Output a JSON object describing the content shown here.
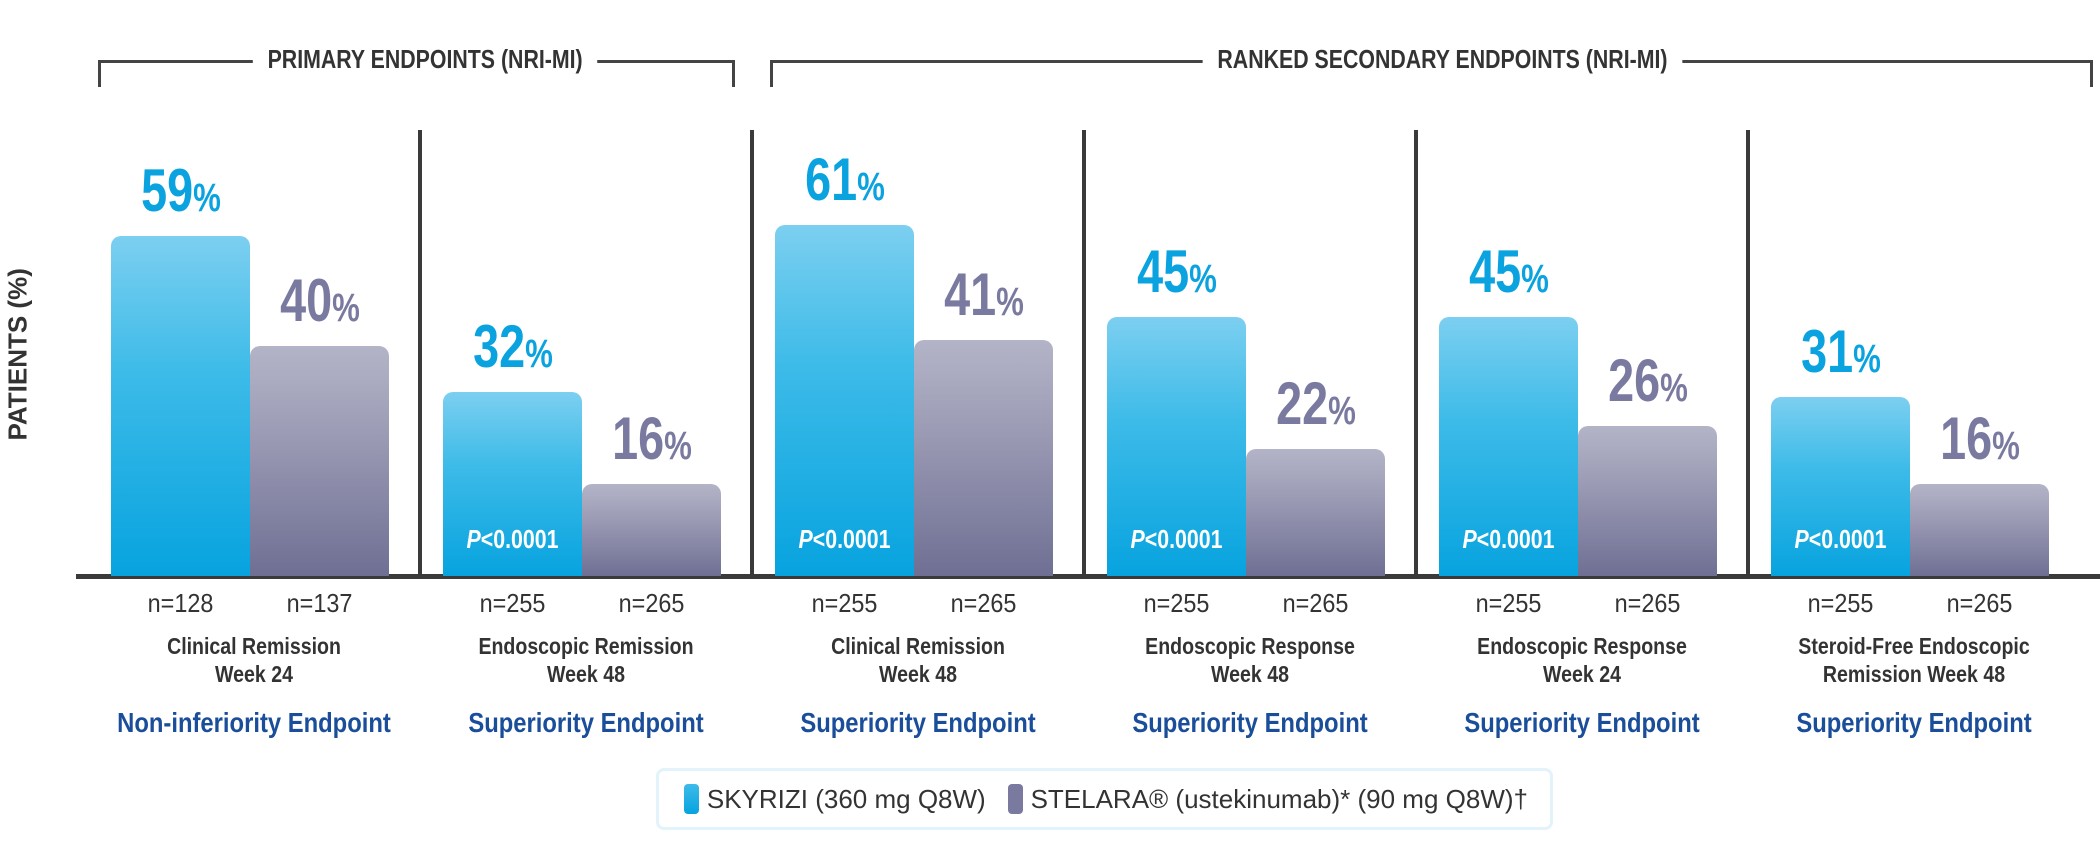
{
  "chart_data": {
    "type": "bar",
    "ylabel": "PATIENTS (%)",
    "ylim": [
      0,
      70
    ],
    "grid": false,
    "legend_placement": "bottom",
    "groups": [
      {
        "label": "PRIMARY ENDPOINTS (NRI-MI)",
        "categories": [
          0,
          1
        ]
      },
      {
        "label": "RANKED SECONDARY ENDPOINTS (NRI-MI)",
        "categories": [
          2,
          3,
          4,
          5
        ]
      }
    ],
    "categories": [
      {
        "line1": "Clinical Remission",
        "line2": "Week 24",
        "endpoint": "Non-inferiority Endpoint",
        "p_value": "",
        "n": [
          "n=128",
          "n=137"
        ]
      },
      {
        "line1": "Endoscopic Remission",
        "line2": "Week 48",
        "endpoint": "Superiority Endpoint",
        "p_value": "P<0.0001",
        "n": [
          "n=255",
          "n=265"
        ]
      },
      {
        "line1": "Clinical Remission",
        "line2": "Week 48",
        "endpoint": "Superiority Endpoint",
        "p_value": "P<0.0001",
        "n": [
          "n=255",
          "n=265"
        ]
      },
      {
        "line1": "Endoscopic Response",
        "line2": "Week 48",
        "endpoint": "Superiority Endpoint",
        "p_value": "P<0.0001",
        "n": [
          "n=255",
          "n=265"
        ]
      },
      {
        "line1": "Endoscopic Response",
        "line2": "Week 24",
        "endpoint": "Superiority Endpoint",
        "p_value": "P<0.0001",
        "n": [
          "n=255",
          "n=265"
        ]
      },
      {
        "line1": "Steroid-Free Endoscopic",
        "line2": "Remission Week 48",
        "endpoint": "Superiority Endpoint",
        "p_value": "P<0.0001",
        "n": [
          "n=255",
          "n=265"
        ]
      }
    ],
    "series": [
      {
        "name": "SKYRIZI (360 mg Q8W)",
        "color": "#0aa3df",
        "values": [
          59,
          32,
          61,
          45,
          45,
          31
        ]
      },
      {
        "name": "STELARA® (ustekinumab)* (90 mg Q8W)†",
        "color": "#7a7aa0",
        "values": [
          40,
          16,
          41,
          22,
          26,
          16
        ]
      }
    ],
    "value_suffix": "%",
    "endpoint_color": "#1a4e9a"
  }
}
